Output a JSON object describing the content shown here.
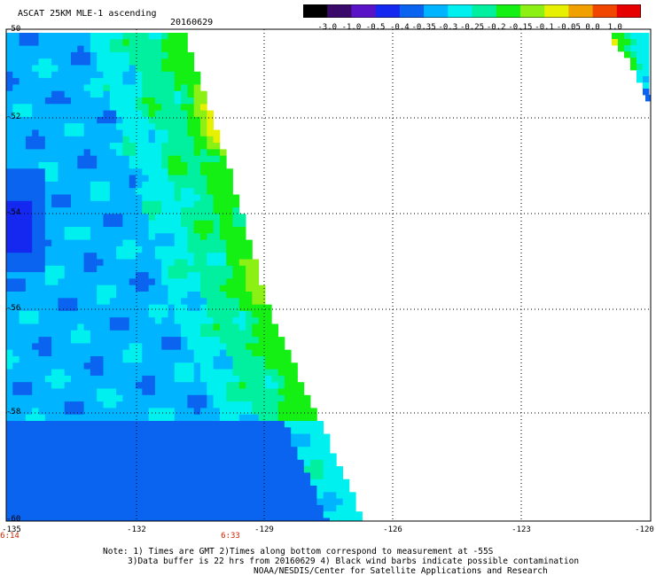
{
  "header": {
    "title": "ASCAT 25KM MLE-1 ascending",
    "date": "20160629"
  },
  "colorbar": {
    "labels": [
      "-3.0",
      "-1.0",
      "-0.5",
      "-0.4",
      "-0.35",
      "-0.3",
      "-0.25",
      "-0.2",
      "-0.15",
      "-0.1",
      "-0.05",
      "0.0",
      "1.0"
    ],
    "colors": [
      "#000000",
      "#3a0a6a",
      "#5a14c8",
      "#1428f0",
      "#0a64f0",
      "#00b4ff",
      "#00f0f0",
      "#00f0a0",
      "#14f014",
      "#8cf014",
      "#e6f000",
      "#f0a000",
      "#f04600",
      "#e60000"
    ]
  },
  "axes": {
    "y_ticks": [
      "-50",
      "-52",
      "-54",
      "-56",
      "-58",
      "-60"
    ],
    "x_ticks": [
      "-135",
      "-132",
      "-129",
      "-126",
      "-123",
      "-120"
    ]
  },
  "times": [
    "6:14",
    "6:33"
  ],
  "notes": [
    "Note: 1) Times are GMT 2)Times along bottom correspond to measurement at -55S",
    "3)Data buffer is 22 hrs from 20160629 4) Black wind barbs indicate possible contamination",
    "NOAA/NESDIS/Center for Satellite Applications and Research"
  ]
}
